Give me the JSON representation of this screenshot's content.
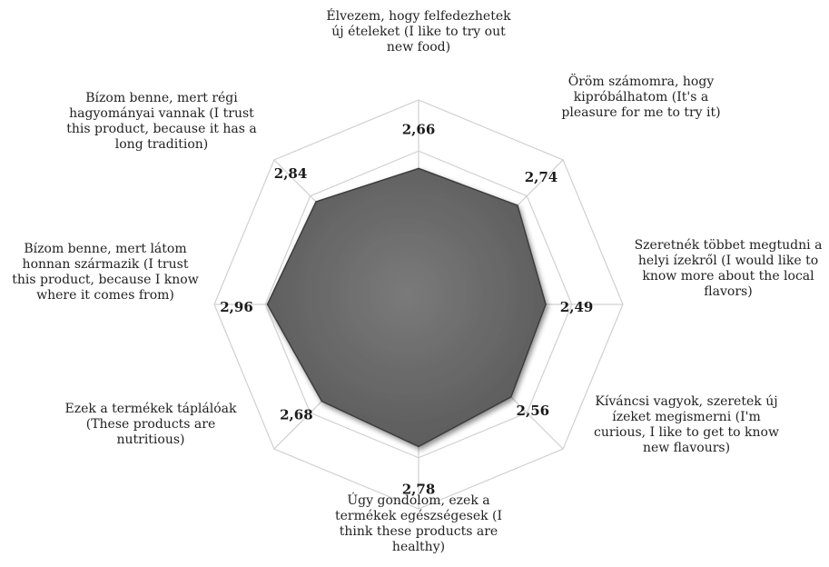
{
  "chart_data": {
    "type": "radar",
    "title": "",
    "categories": [
      [
        "Élvezem, hogy felfedezhetek",
        "új ételeket  (I like to try out",
        "new food)"
      ],
      [
        "Öröm számomra, hogy",
        "kipróbálhatom  (It's a",
        "pleasure for me to try it)"
      ],
      [
        "Szeretnék többet megtudni a",
        "helyi ízekről (I would like to",
        "know more about the local",
        "flavors)"
      ],
      [
        "Kíváncsi vagyok, szeretek új",
        "ízeket megismerni (I'm",
        "curious, I like to get to know",
        "new flavours)"
      ],
      [
        "Úgy gondolom, ezek a",
        "termékek egészségesek (I",
        "think these products are",
        "healthy)"
      ],
      [
        "Ezek a termékek táplálóak",
        "(These products are",
        "nutritious)"
      ],
      [
        "Bízom benne, mert látom",
        "honnan származik (I trust",
        "this product, because I know",
        "where it comes from)"
      ],
      [
        "Bízom benne, mert régi",
        "hagyományai vannak (I trust",
        "this product, because it has a",
        "long tradition)"
      ]
    ],
    "values": [
      2.66,
      2.74,
      2.49,
      2.56,
      2.78,
      2.68,
      2.96,
      2.84
    ],
    "value_labels": [
      "2,66",
      "2,74",
      "2,49",
      "2,56",
      "2,78",
      "2,68",
      "2,96",
      "2,84"
    ],
    "grid": true,
    "legend": "none",
    "colors": {
      "fill": "#6b6b6b",
      "fill_dark": "#4a4a4a",
      "stroke": "#3c3c3c",
      "grid": "#d0d0d0"
    }
  }
}
